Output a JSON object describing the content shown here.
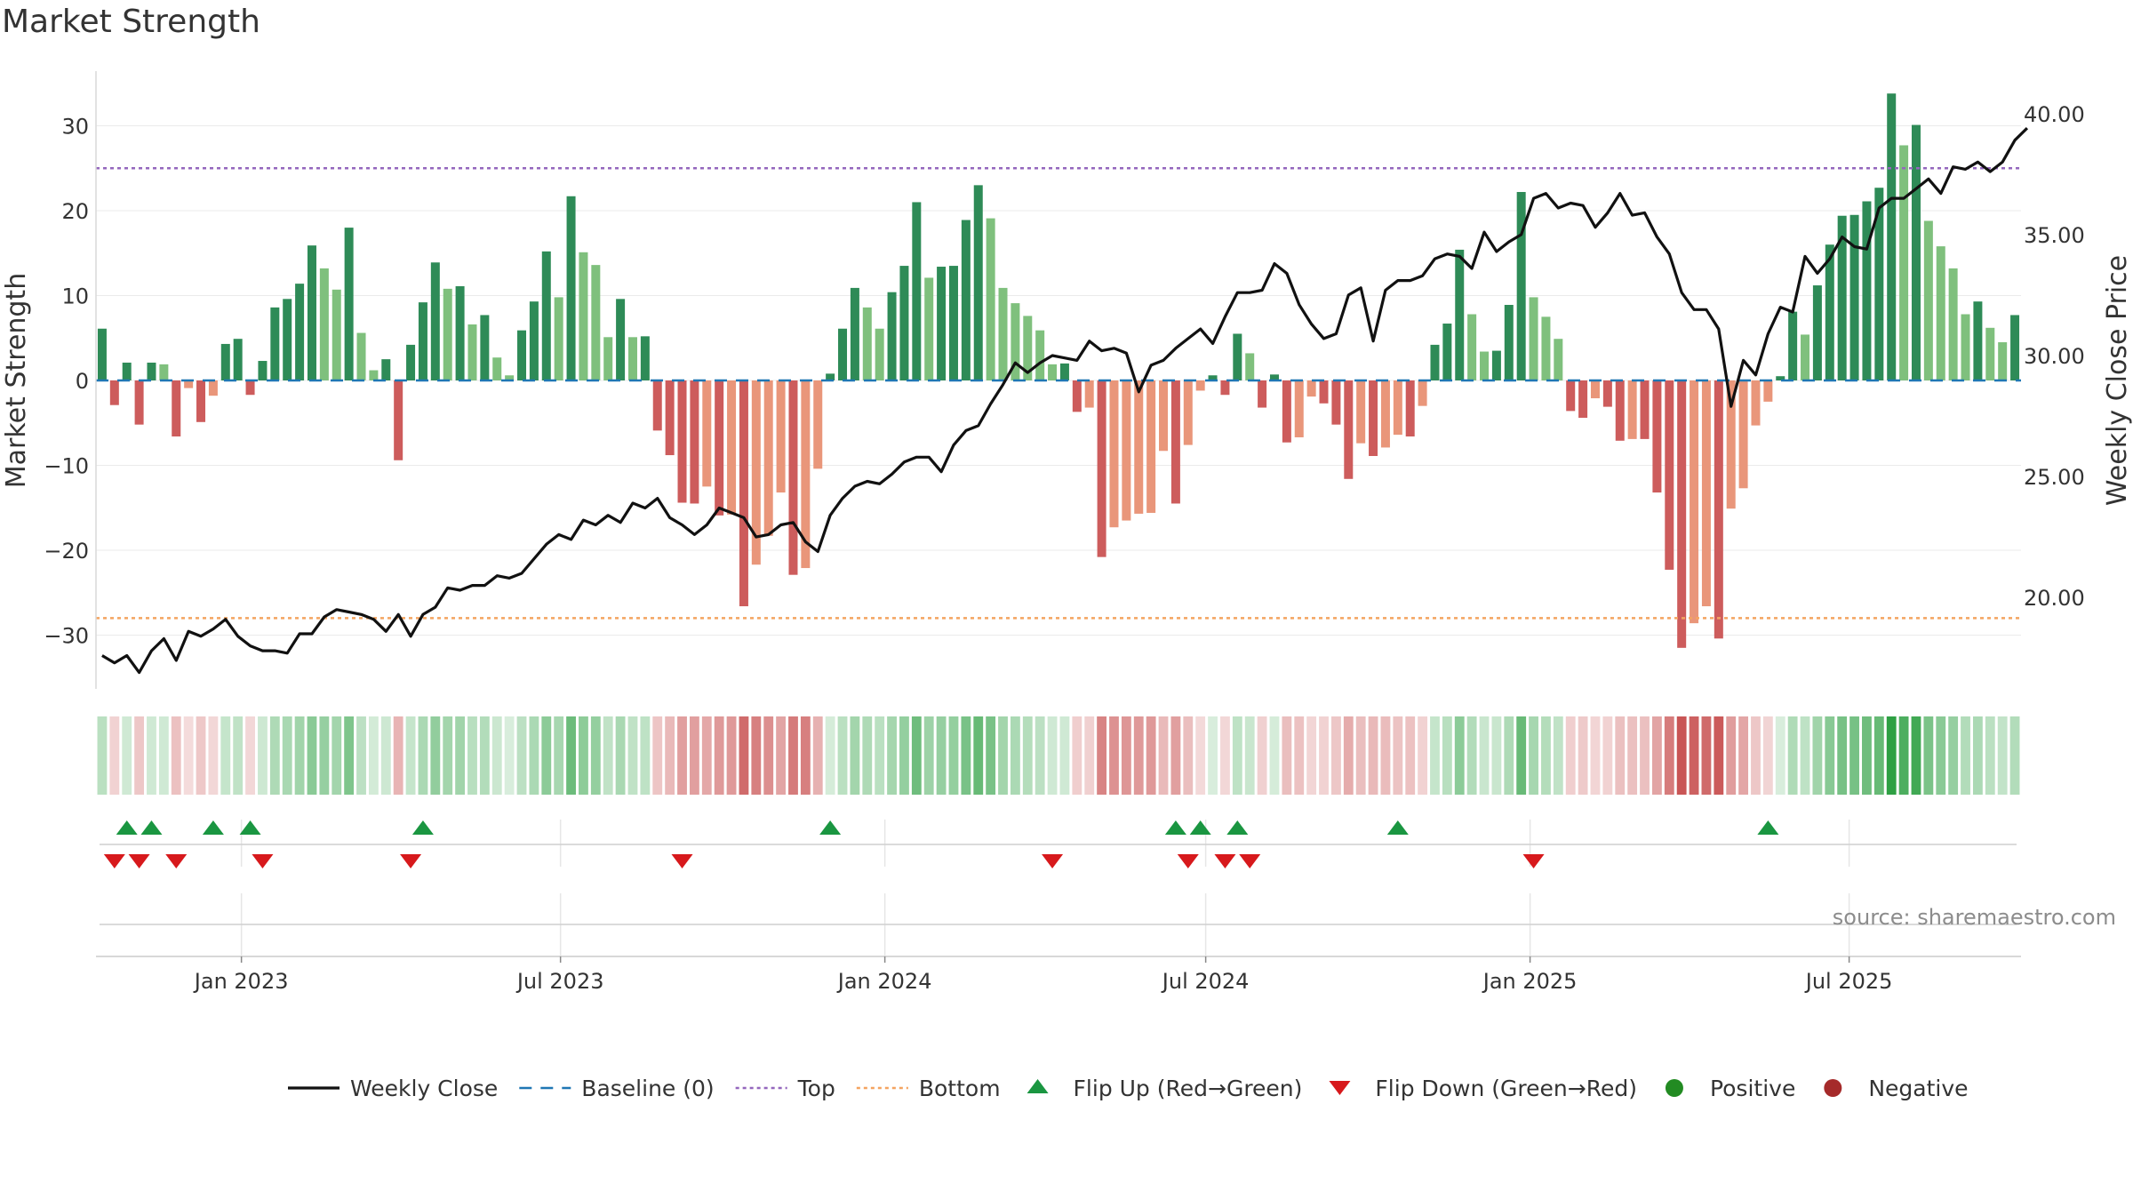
{
  "chart_data": {
    "type": "bar",
    "title": "Market Strength",
    "ylabel_left": "Market Strength",
    "ylabel_right": "Weekly Close Price",
    "left_ticks": [
      "30",
      "20",
      "10",
      "0",
      "−10",
      "−20",
      "−30"
    ],
    "left_tick_values": [
      30,
      20,
      10,
      0,
      -10,
      -20,
      -30
    ],
    "right_ticks": [
      "40.00",
      "35.00",
      "30.00",
      "25.00",
      "20.00"
    ],
    "right_tick_values": [
      40,
      35,
      30,
      25,
      20
    ],
    "x_ticks": [
      "Jan 2023",
      "Jul 2023",
      "Jan 2024",
      "Jul 2024",
      "Jan 2025",
      "Jul 2025"
    ],
    "x_tick_dates": [
      "2023-01-01",
      "2023-07-01",
      "2024-01-01",
      "2024-07-01",
      "2025-01-01",
      "2025-07-01"
    ],
    "ylim_left": [
      -36,
      36
    ],
    "ylim_right": [
      15.5,
      40.4
    ],
    "start_date": "2022-10-14",
    "interval_days": 7,
    "top_threshold": 25,
    "bottom_threshold": -28,
    "baseline": 0,
    "strength": [
      6.1,
      -2.9,
      2.1,
      -5.2,
      2.1,
      1.9,
      -6.6,
      -0.9,
      -4.9,
      -1.8,
      4.3,
      4.9,
      -1.7,
      2.3,
      8.6,
      9.6,
      11.4,
      15.9,
      13.2,
      10.7,
      18.0,
      5.6,
      1.2,
      2.5,
      -9.4,
      4.2,
      9.2,
      13.9,
      10.8,
      11.1,
      6.6,
      7.7,
      2.7,
      0.6,
      5.9,
      9.3,
      15.2,
      9.8,
      21.7,
      15.1,
      13.6,
      5.1,
      9.6,
      5.1,
      5.2,
      -5.9,
      -8.8,
      -14.4,
      -14.5,
      -12.5,
      -15.9,
      -15.8,
      -26.6,
      -21.7,
      -18.3,
      -13.2,
      -22.9,
      -22.1,
      -10.4,
      0.8,
      6.1,
      10.9,
      8.6,
      6.1,
      10.4,
      13.5,
      21.0,
      12.1,
      13.4,
      13.5,
      18.9,
      23.0,
      19.1,
      10.9,
      9.1,
      7.6,
      5.9,
      1.9,
      2.0,
      -3.7,
      -3.2,
      -20.8,
      -17.3,
      -16.5,
      -15.7,
      -15.6,
      -8.3,
      -14.5,
      -7.6,
      -1.2,
      0.6,
      -1.7,
      5.5,
      3.2,
      -3.2,
      0.7,
      -7.3,
      -6.7,
      -1.9,
      -2.7,
      -5.2,
      -11.6,
      -7.4,
      -8.9,
      -7.9,
      -6.4,
      -6.6,
      -3.0,
      4.2,
      6.7,
      15.4,
      7.8,
      3.4,
      3.5,
      8.9,
      22.2,
      9.8,
      7.5,
      4.9,
      -3.6,
      -4.4,
      -2.1,
      -3.1,
      -7.1,
      -6.9,
      -6.9,
      -13.2,
      -22.3,
      -31.5,
      -28.6,
      -26.6,
      -30.4,
      -15.1,
      -12.7,
      -5.3,
      -2.5,
      0.5,
      8.1,
      5.4,
      11.2,
      16.0,
      19.4,
      19.5,
      21.1,
      22.7,
      33.8,
      27.7,
      30.1,
      18.8,
      15.8,
      13.2,
      7.8,
      9.3,
      6.2,
      4.5,
      7.7
    ],
    "weekly_close": [
      17.6,
      17.3,
      17.6,
      16.9,
      17.8,
      18.3,
      17.4,
      18.6,
      18.4,
      18.7,
      19.1,
      18.4,
      18.0,
      17.8,
      17.8,
      17.7,
      18.5,
      18.5,
      19.2,
      19.5,
      19.4,
      19.3,
      19.1,
      18.6,
      19.3,
      18.4,
      19.3,
      19.6,
      20.4,
      20.3,
      20.5,
      20.5,
      20.9,
      20.8,
      21.0,
      21.6,
      22.2,
      22.6,
      22.4,
      23.2,
      23.0,
      23.4,
      23.1,
      23.9,
      23.7,
      24.1,
      23.3,
      23.0,
      22.6,
      23.0,
      23.7,
      23.5,
      23.3,
      22.5,
      22.6,
      23.0,
      23.1,
      22.3,
      21.9,
      23.4,
      24.1,
      24.6,
      24.8,
      24.7,
      25.1,
      25.6,
      25.8,
      25.8,
      25.2,
      26.3,
      26.9,
      27.1,
      28.0,
      28.8,
      29.7,
      29.3,
      29.7,
      30.0,
      29.9,
      29.8,
      30.6,
      30.2,
      30.3,
      30.1,
      28.5,
      29.6,
      29.8,
      30.3,
      30.7,
      31.1,
      30.5,
      31.6,
      32.6,
      32.6,
      32.7,
      33.8,
      33.4,
      32.1,
      31.3,
      30.7,
      30.9,
      32.5,
      32.8,
      30.6,
      32.7,
      33.1,
      33.1,
      33.3,
      34.0,
      34.2,
      34.1,
      33.6,
      35.1,
      34.3,
      34.7,
      35.0,
      36.5,
      36.7,
      36.1,
      36.3,
      36.2,
      35.3,
      35.9,
      36.7,
      35.8,
      35.9,
      34.9,
      34.2,
      32.6,
      31.9,
      31.9,
      31.1,
      27.9,
      29.8,
      29.2,
      30.9,
      32.0,
      31.8,
      34.1,
      33.4,
      34.0,
      34.9,
      34.5,
      34.4,
      36.1,
      36.5,
      36.5,
      36.9,
      37.3,
      36.7,
      37.8,
      37.7,
      38.0,
      37.6,
      38.0,
      38.9,
      39.4
    ],
    "flip_up_dates": [
      "2022-10-28",
      "2022-11-11",
      "2022-12-16",
      "2023-01-06",
      "2023-04-14",
      "2023-12-01",
      "2024-06-14",
      "2024-06-28",
      "2024-07-19",
      "2024-10-18",
      "2025-05-16"
    ],
    "flip_down_dates": [
      "2022-10-21",
      "2022-11-04",
      "2022-11-25",
      "2023-01-13",
      "2023-04-07",
      "2023-09-08",
      "2024-04-05",
      "2024-06-21",
      "2024-07-12",
      "2024-07-26",
      "2025-01-03"
    ],
    "colors": {
      "bar_pos_strong": "#2e8b57",
      "bar_pos_weak": "#7fc07d",
      "bar_neg_strong": "#cd5c5c",
      "bar_neg_weak": "#e9967a",
      "close_line": "#111111",
      "baseline": "#1f77b4",
      "top": "#9467bd",
      "bottom": "#f4a460",
      "flip_up": "#1a9641",
      "flip_down": "#d7191c",
      "positive": "#228b22",
      "negative": "#a52a2a"
    },
    "legend": [
      {
        "label": "Weekly Close",
        "kind": "line"
      },
      {
        "label": "Baseline (0)",
        "kind": "dash"
      },
      {
        "label": "Top",
        "kind": "dot-top"
      },
      {
        "label": "Bottom",
        "kind": "dot-bottom"
      },
      {
        "label": "Flip Up (Red→Green)",
        "kind": "tri-up"
      },
      {
        "label": "Flip Down (Green→Red)",
        "kind": "tri-down"
      },
      {
        "label": "Positive",
        "kind": "circle-pos"
      },
      {
        "label": "Negative",
        "kind": "circle-neg"
      }
    ],
    "legend_position": "bottom-center",
    "source": "source: sharemaestro.com"
  }
}
